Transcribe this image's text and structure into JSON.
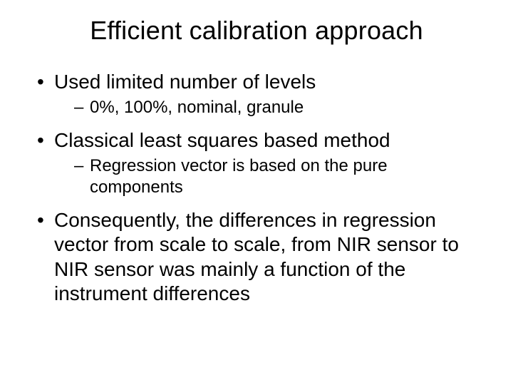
{
  "slide": {
    "background_color": "#ffffff",
    "text_color": "#000000",
    "font_family": "Arial",
    "title": {
      "text": "Efficient calibration approach",
      "fontsize": 36,
      "align": "center"
    },
    "bullets": [
      {
        "text": "Used limited number of levels",
        "fontsize": 28,
        "sub": [
          {
            "text": "0%, 100%, nominal, granule",
            "fontsize": 24
          }
        ]
      },
      {
        "text": "Classical least squares based method",
        "fontsize": 28,
        "sub": [
          {
            "text": "Regression vector is based on the pure components",
            "fontsize": 24
          }
        ]
      },
      {
        "text": "Consequently, the differences in regression vector from scale to scale, from NIR sensor to NIR sensor was mainly a function of the instrument differences",
        "fontsize": 28,
        "sub": []
      }
    ],
    "bullet_marker_level1": "•",
    "bullet_marker_level2": "–"
  }
}
